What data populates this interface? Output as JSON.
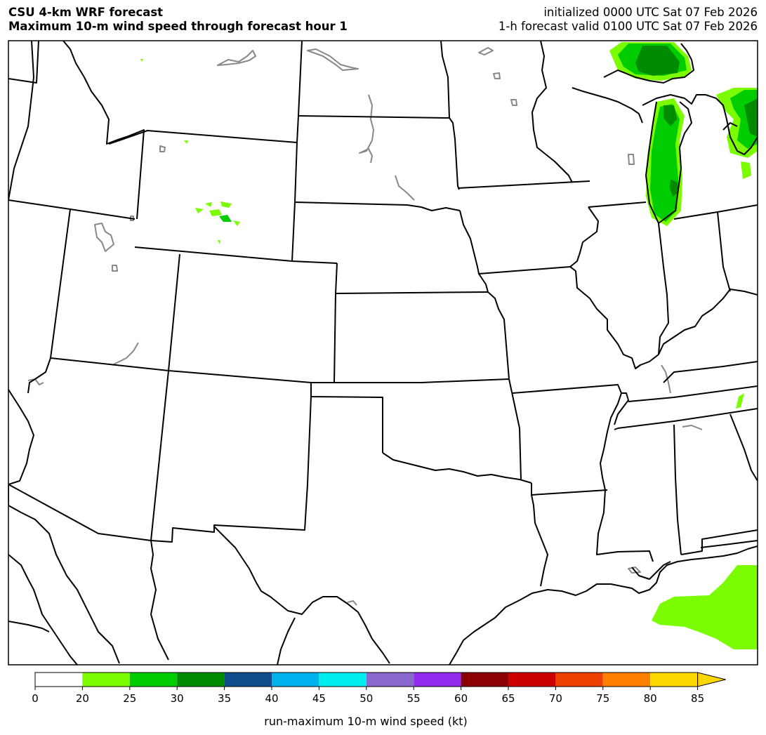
{
  "header": {
    "title_line1": "CSU 4-km WRF forecast",
    "title_line2": "Maximum 10-m wind speed through forecast hour 1",
    "init_line": "initialized 0000 UTC Sat 07 Feb 2026",
    "valid_line": "1-h forecast valid 0100 UTC Sat 07 Feb 2026"
  },
  "colorbar": {
    "label": "run-maximum 10-m wind speed (kt)",
    "ticks": [
      "0",
      "20",
      "25",
      "30",
      "35",
      "40",
      "45",
      "50",
      "55",
      "60",
      "65",
      "70",
      "75",
      "80",
      "85"
    ],
    "colors": [
      "#ffffff",
      "#7cfc00",
      "#00cd00",
      "#008b00",
      "#104e8b",
      "#00b2ee",
      "#00eeee",
      "#8968cd",
      "#912cee",
      "#8b0000",
      "#cd0000",
      "#ee4000",
      "#ff7f00",
      "#ffd700"
    ],
    "extend_color": "#ffd700"
  },
  "map": {
    "border_color": "#000000",
    "lake_color": "#888888",
    "fill_light_green": "#7cfc00",
    "fill_mid_green": "#00cd00",
    "fill_dark_green": "#008b00"
  }
}
